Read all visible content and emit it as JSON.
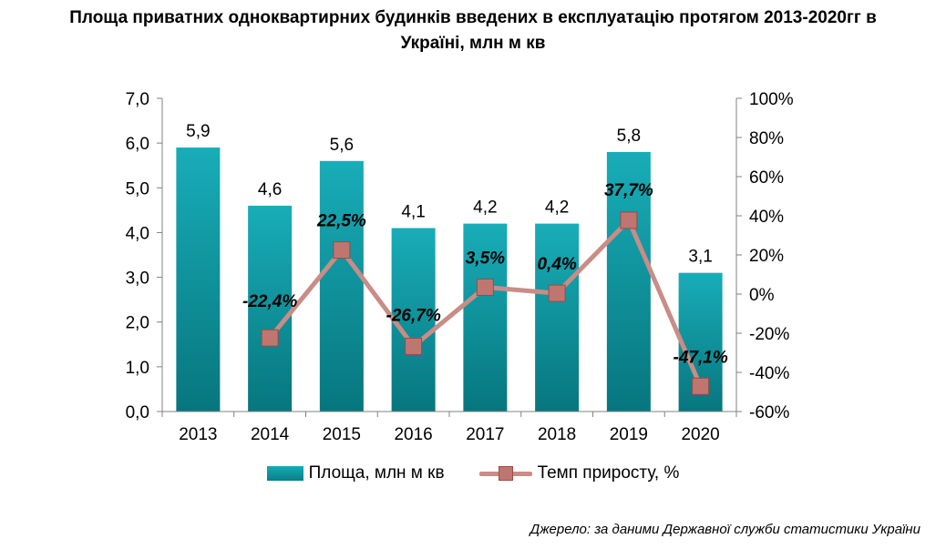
{
  "title_lines": [
    "Площа приватних одноквартирних будинків введених в експлуатацію протягом 2013-2020гг в",
    "Україні, млн м кв"
  ],
  "source": "Джерело: за даними Державної служби статистики України",
  "colors": {
    "bar_top": "#18adb8",
    "bar_bottom": "#07767e",
    "line": "#c98c86",
    "marker_fill": "#c07670",
    "marker_stroke": "#9a4a45",
    "axis": "#808080"
  },
  "chart_data": {
    "type": "bar+line",
    "categories": [
      "2013",
      "2014",
      "2015",
      "2016",
      "2017",
      "2018",
      "2019",
      "2020"
    ],
    "series": [
      {
        "name": "Площа, млн м кв",
        "type": "bar",
        "axis": "left",
        "values": [
          5.9,
          4.6,
          5.6,
          4.1,
          4.2,
          4.2,
          5.8,
          3.1
        ],
        "labels": [
          "5,9",
          "4,6",
          "5,6",
          "4,1",
          "4,2",
          "4,2",
          "5,8",
          "3,1"
        ]
      },
      {
        "name": "Темп приросту, %",
        "type": "line",
        "axis": "right",
        "values": [
          null,
          -22.4,
          22.5,
          -26.7,
          3.5,
          0.4,
          37.7,
          -47.1
        ],
        "labels": [
          "",
          "-22,4%",
          "22,5%",
          "-26,7%",
          "3,5%",
          "0,4%",
          "37,7%",
          "-47,1%"
        ]
      }
    ],
    "y_left": {
      "min": 0,
      "max": 7,
      "ticks": [
        0,
        1,
        2,
        3,
        4,
        5,
        6,
        7
      ],
      "tick_labels": [
        "0,0",
        "1,0",
        "2,0",
        "3,0",
        "4,0",
        "5,0",
        "6,0",
        "7,0"
      ]
    },
    "y_right": {
      "min": -60,
      "max": 100,
      "ticks": [
        -60,
        -40,
        -20,
        0,
        20,
        40,
        60,
        80,
        100
      ],
      "tick_labels": [
        "-60%",
        "-40%",
        "-20%",
        "0%",
        "20%",
        "40%",
        "60%",
        "80%",
        "100%"
      ]
    },
    "grid": false,
    "legend_position": "bottom"
  }
}
